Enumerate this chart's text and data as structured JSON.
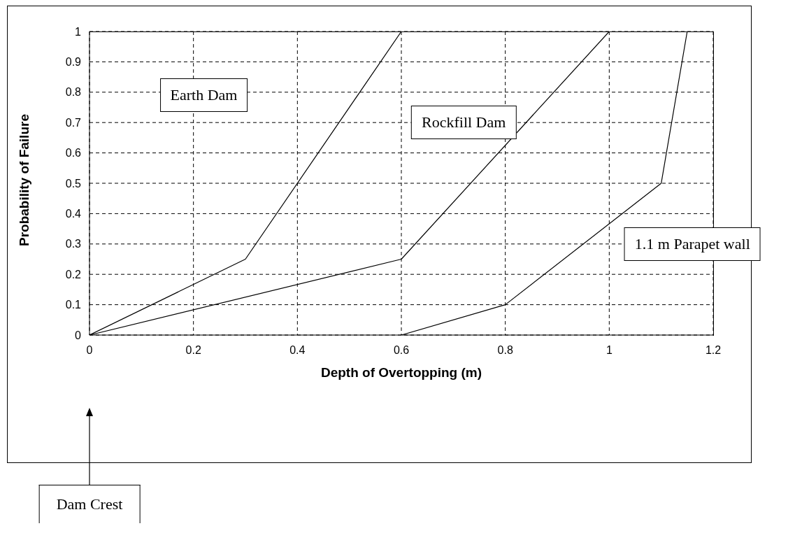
{
  "chart_data": {
    "type": "line",
    "xlabel": "Depth of Overtopping (m)",
    "ylabel": "Probability of Failure",
    "series": [
      {
        "name": "Earth Dam",
        "color": "#000000",
        "x": [
          0,
          0.3,
          0.6
        ],
        "values": [
          0,
          0.25,
          1
        ]
      },
      {
        "name": "Rockfill Dam",
        "color": "#000000",
        "x": [
          0,
          0.6,
          1.0
        ],
        "values": [
          0,
          0.25,
          1
        ]
      },
      {
        "name": "1.1 m Parapet wall",
        "color": "#000000",
        "x": [
          0.6,
          0.8,
          1.1,
          1.15
        ],
        "values": [
          0,
          0.1,
          0.5,
          1
        ]
      }
    ],
    "xlim": [
      0,
      1.2
    ],
    "xticks": [
      0,
      0.2,
      0.4,
      0.6,
      0.8,
      1,
      1.2
    ],
    "ylim": [
      0,
      1
    ],
    "yticks": [
      0,
      0.1,
      0.2,
      0.3,
      0.4,
      0.5,
      0.6,
      0.7,
      0.8,
      0.9,
      1
    ],
    "annotations": [
      "Dam Crest"
    ],
    "grid": true,
    "legend": false,
    "marker": "none",
    "line_style": "solid"
  }
}
